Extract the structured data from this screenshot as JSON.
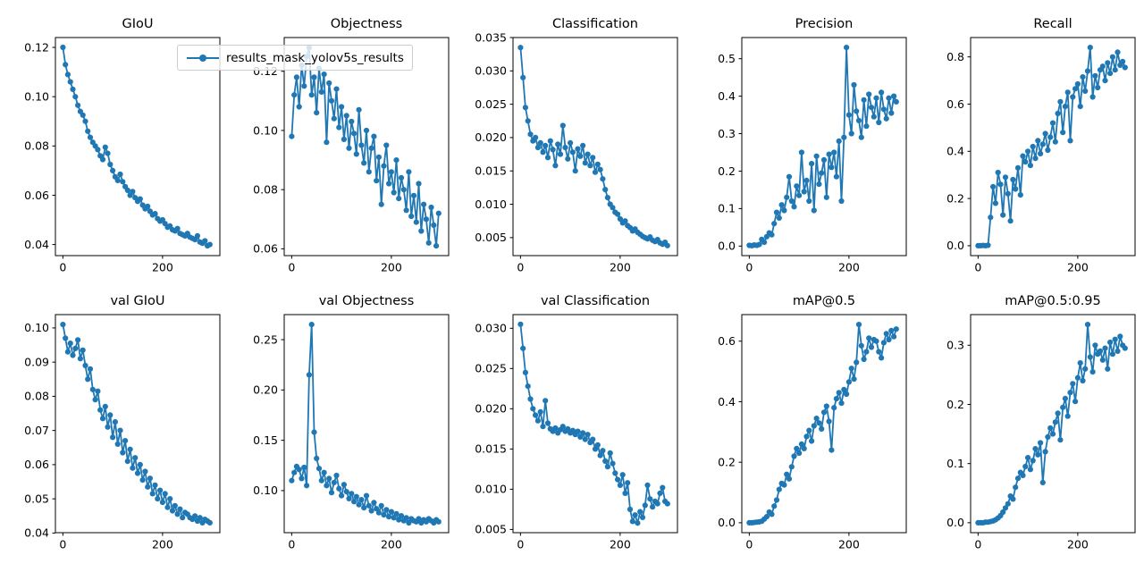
{
  "figure": {
    "background": "#ffffff",
    "line_color": "#1f77b4",
    "legend": {
      "label": "results_mask_yolov5s_results"
    }
  },
  "chart_data": {
    "type": "line",
    "series_name": "results_mask_yolov5s_results",
    "legend_position": "top, spanning first and second subplot",
    "grid": false,
    "marker": "circle",
    "xlim": [
      -15,
      315
    ],
    "xticks": [
      0,
      200
    ],
    "xtick_labels": [
      "0",
      "200"
    ],
    "x": [
      0,
      5,
      10,
      15,
      20,
      25,
      30,
      35,
      40,
      45,
      50,
      55,
      60,
      65,
      70,
      75,
      80,
      85,
      90,
      95,
      100,
      105,
      110,
      115,
      120,
      125,
      130,
      135,
      140,
      145,
      150,
      155,
      160,
      165,
      170,
      175,
      180,
      185,
      190,
      195,
      200,
      205,
      210,
      215,
      220,
      225,
      230,
      235,
      240,
      245,
      250,
      255,
      260,
      265,
      270,
      275,
      280,
      285,
      290,
      295
    ],
    "subplots": [
      {
        "title": "GIoU",
        "ylim": [
          0.0355,
          0.124
        ],
        "yticks": [
          0.04,
          0.06,
          0.08,
          0.1,
          0.12
        ],
        "ytick_labels": [
          "0.04",
          "0.06",
          "0.08",
          "0.10",
          "0.12"
        ],
        "values": [
          0.12,
          0.113,
          0.109,
          0.106,
          0.103,
          0.1,
          0.0965,
          0.094,
          0.0925,
          0.09,
          0.086,
          0.0835,
          0.0815,
          0.08,
          0.0785,
          0.076,
          0.0745,
          0.0795,
          0.077,
          0.0725,
          0.07,
          0.0675,
          0.066,
          0.0685,
          0.0655,
          0.0635,
          0.062,
          0.06,
          0.0615,
          0.059,
          0.0575,
          0.0585,
          0.056,
          0.0545,
          0.0555,
          0.0535,
          0.052,
          0.0525,
          0.0505,
          0.0495,
          0.05,
          0.0485,
          0.047,
          0.0475,
          0.046,
          0.0455,
          0.0465,
          0.0445,
          0.044,
          0.0435,
          0.0445,
          0.043,
          0.0425,
          0.042,
          0.0435,
          0.041,
          0.0405,
          0.0415,
          0.0395,
          0.04
        ]
      },
      {
        "title": "Objectness",
        "ylim": [
          0.0577,
          0.1314
        ],
        "yticks": [
          0.06,
          0.08,
          0.1,
          0.12
        ],
        "ytick_labels": [
          "0.06",
          "0.08",
          "0.10",
          "0.12"
        ],
        "values": [
          0.098,
          0.112,
          0.118,
          0.108,
          0.122,
          0.115,
          0.125,
          0.128,
          0.112,
          0.118,
          0.106,
          0.121,
          0.113,
          0.119,
          0.096,
          0.116,
          0.11,
          0.104,
          0.114,
          0.101,
          0.108,
          0.097,
          0.105,
          0.094,
          0.103,
          0.099,
          0.092,
          0.107,
          0.095,
          0.089,
          0.1,
          0.086,
          0.094,
          0.098,
          0.083,
          0.091,
          0.075,
          0.088,
          0.095,
          0.082,
          0.086,
          0.079,
          0.09,
          0.077,
          0.084,
          0.08,
          0.073,
          0.086,
          0.071,
          0.078,
          0.069,
          0.082,
          0.066,
          0.075,
          0.07,
          0.062,
          0.074,
          0.068,
          0.061,
          0.072
        ]
      },
      {
        "title": "Classification",
        "ylim": [
          0.0023,
          0.035
        ],
        "yticks": [
          0.005,
          0.01,
          0.015,
          0.02,
          0.025,
          0.03,
          0.035
        ],
        "ytick_labels": [
          "0.005",
          "0.010",
          "0.015",
          "0.020",
          "0.025",
          "0.030",
          "0.035"
        ],
        "values": [
          0.0335,
          0.029,
          0.0245,
          0.0225,
          0.0205,
          0.0195,
          0.02,
          0.0185,
          0.0192,
          0.0178,
          0.0188,
          0.017,
          0.0195,
          0.0182,
          0.0158,
          0.019,
          0.0175,
          0.0218,
          0.0185,
          0.0168,
          0.0192,
          0.0178,
          0.015,
          0.0183,
          0.0172,
          0.0188,
          0.0162,
          0.0175,
          0.0158,
          0.017,
          0.0148,
          0.016,
          0.0152,
          0.0138,
          0.0122,
          0.011,
          0.01,
          0.0095,
          0.0088,
          0.0085,
          0.0078,
          0.0072,
          0.0075,
          0.0068,
          0.0065,
          0.006,
          0.0063,
          0.0058,
          0.0055,
          0.0052,
          0.005,
          0.0048,
          0.0051,
          0.0046,
          0.0044,
          0.0047,
          0.0042,
          0.004,
          0.0043,
          0.0038
        ]
      },
      {
        "title": "Precision",
        "ylim": [
          -0.0255,
          0.5565
        ],
        "yticks": [
          0.0,
          0.1,
          0.2,
          0.3,
          0.4,
          0.5
        ],
        "ytick_labels": [
          "0.0",
          "0.1",
          "0.2",
          "0.3",
          "0.4",
          "0.5"
        ],
        "values": [
          0.002,
          0.001,
          0.003,
          0.002,
          0.004,
          0.018,
          0.01,
          0.025,
          0.035,
          0.03,
          0.06,
          0.09,
          0.075,
          0.11,
          0.095,
          0.13,
          0.185,
          0.12,
          0.105,
          0.16,
          0.135,
          0.25,
          0.145,
          0.175,
          0.12,
          0.22,
          0.095,
          0.24,
          0.165,
          0.195,
          0.23,
          0.13,
          0.245,
          0.21,
          0.25,
          0.185,
          0.28,
          0.12,
          0.29,
          0.53,
          0.35,
          0.3,
          0.43,
          0.36,
          0.335,
          0.29,
          0.39,
          0.32,
          0.405,
          0.37,
          0.345,
          0.395,
          0.33,
          0.41,
          0.365,
          0.34,
          0.395,
          0.355,
          0.4,
          0.385
        ]
      },
      {
        "title": "Recall",
        "ylim": [
          -0.042,
          0.882
        ],
        "yticks": [
          0.0,
          0.2,
          0.4,
          0.6,
          0.8
        ],
        "ytick_labels": [
          "0.0",
          "0.2",
          "0.4",
          "0.6",
          "0.8"
        ],
        "values": [
          0.0,
          0.0,
          0.001,
          0.0,
          0.002,
          0.12,
          0.25,
          0.18,
          0.31,
          0.26,
          0.13,
          0.29,
          0.22,
          0.105,
          0.28,
          0.24,
          0.33,
          0.215,
          0.38,
          0.355,
          0.4,
          0.34,
          0.42,
          0.37,
          0.445,
          0.39,
          0.43,
          0.475,
          0.405,
          0.46,
          0.52,
          0.44,
          0.56,
          0.61,
          0.48,
          0.59,
          0.65,
          0.445,
          0.63,
          0.665,
          0.685,
          0.59,
          0.715,
          0.655,
          0.74,
          0.84,
          0.63,
          0.72,
          0.67,
          0.745,
          0.76,
          0.7,
          0.775,
          0.73,
          0.8,
          0.745,
          0.82,
          0.765,
          0.78,
          0.755
        ]
      },
      {
        "title": "val GIoU",
        "ylim": [
          0.0401,
          0.1039
        ],
        "yticks": [
          0.04,
          0.05,
          0.06,
          0.07,
          0.08,
          0.09,
          0.1
        ],
        "ytick_labels": [
          "0.04",
          "0.05",
          "0.06",
          "0.07",
          "0.08",
          "0.09",
          "0.10"
        ],
        "values": [
          0.101,
          0.097,
          0.093,
          0.0955,
          0.092,
          0.094,
          0.0965,
          0.091,
          0.0935,
          0.089,
          0.085,
          0.088,
          0.082,
          0.079,
          0.0815,
          0.076,
          0.0735,
          0.077,
          0.071,
          0.0745,
          0.068,
          0.0725,
          0.066,
          0.07,
          0.0635,
          0.067,
          0.061,
          0.0645,
          0.059,
          0.062,
          0.0575,
          0.06,
          0.0555,
          0.058,
          0.0535,
          0.056,
          0.0515,
          0.054,
          0.05,
          0.0525,
          0.049,
          0.0515,
          0.0475,
          0.05,
          0.0465,
          0.048,
          0.0455,
          0.047,
          0.0445,
          0.046,
          0.0455,
          0.0445,
          0.044,
          0.045,
          0.0435,
          0.0445,
          0.043,
          0.044,
          0.0435,
          0.043
        ]
      },
      {
        "title": "val Objectness",
        "ylim": [
          0.0582,
          0.2749
        ],
        "yticks": [
          0.1,
          0.15,
          0.2,
          0.25
        ],
        "ytick_labels": [
          "0.10",
          "0.15",
          "0.20",
          "0.25"
        ],
        "values": [
          0.11,
          0.118,
          0.124,
          0.121,
          0.112,
          0.123,
          0.105,
          0.215,
          0.265,
          0.158,
          0.132,
          0.122,
          0.11,
          0.118,
          0.105,
          0.112,
          0.098,
          0.108,
          0.115,
          0.102,
          0.095,
          0.106,
          0.099,
          0.092,
          0.097,
          0.089,
          0.094,
          0.086,
          0.091,
          0.083,
          0.095,
          0.085,
          0.08,
          0.088,
          0.082,
          0.078,
          0.085,
          0.076,
          0.081,
          0.074,
          0.079,
          0.073,
          0.077,
          0.071,
          0.075,
          0.07,
          0.073,
          0.068,
          0.072,
          0.07,
          0.069,
          0.072,
          0.068,
          0.071,
          0.069,
          0.072,
          0.07,
          0.068,
          0.071,
          0.069
        ]
      },
      {
        "title": "val Classification",
        "ylim": [
          0.0046,
          0.0317
        ],
        "yticks": [
          0.005,
          0.01,
          0.015,
          0.02,
          0.025,
          0.03
        ],
        "ytick_labels": [
          "0.005",
          "0.010",
          "0.015",
          "0.020",
          "0.025",
          "0.030"
        ],
        "values": [
          0.0305,
          0.0275,
          0.0245,
          0.0228,
          0.0212,
          0.02,
          0.0192,
          0.0185,
          0.0196,
          0.0178,
          0.021,
          0.0182,
          0.0175,
          0.0172,
          0.0176,
          0.017,
          0.0174,
          0.0178,
          0.0172,
          0.0175,
          0.017,
          0.0173,
          0.0168,
          0.0172,
          0.0165,
          0.017,
          0.0162,
          0.0168,
          0.0158,
          0.0162,
          0.015,
          0.0155,
          0.0142,
          0.0148,
          0.0135,
          0.0128,
          0.0145,
          0.0132,
          0.012,
          0.0112,
          0.0105,
          0.0118,
          0.0095,
          0.0108,
          0.0075,
          0.006,
          0.0068,
          0.0058,
          0.0072,
          0.0065,
          0.008,
          0.0105,
          0.0088,
          0.0078,
          0.0085,
          0.0082,
          0.0095,
          0.0102,
          0.0085,
          0.0082
        ]
      },
      {
        "title": "mAP@0.5",
        "ylim": [
          -0.0328,
          0.6878
        ],
        "yticks": [
          0.0,
          0.2,
          0.4,
          0.6
        ],
        "ytick_labels": [
          "0.0",
          "0.2",
          "0.4",
          "0.6"
        ],
        "values": [
          0.0,
          0.0,
          0.001,
          0.002,
          0.003,
          0.005,
          0.012,
          0.02,
          0.035,
          0.028,
          0.055,
          0.075,
          0.11,
          0.13,
          0.125,
          0.16,
          0.145,
          0.185,
          0.22,
          0.245,
          0.23,
          0.26,
          0.245,
          0.285,
          0.305,
          0.27,
          0.32,
          0.345,
          0.33,
          0.31,
          0.365,
          0.385,
          0.335,
          0.24,
          0.38,
          0.41,
          0.43,
          0.395,
          0.44,
          0.425,
          0.465,
          0.51,
          0.475,
          0.53,
          0.655,
          0.585,
          0.54,
          0.565,
          0.61,
          0.58,
          0.605,
          0.6,
          0.565,
          0.545,
          0.595,
          0.625,
          0.605,
          0.635,
          0.615,
          0.64
        ]
      },
      {
        "title": "mAP@0.5:0.95",
        "ylim": [
          -0.0168,
          0.3518
        ],
        "yticks": [
          0.0,
          0.1,
          0.2,
          0.3
        ],
        "ytick_labels": [
          "0.0",
          "0.1",
          "0.2",
          "0.3"
        ],
        "values": [
          0.0,
          0.0,
          0.0,
          0.001,
          0.001,
          0.002,
          0.003,
          0.005,
          0.008,
          0.012,
          0.018,
          0.025,
          0.032,
          0.045,
          0.04,
          0.06,
          0.075,
          0.085,
          0.08,
          0.095,
          0.11,
          0.09,
          0.105,
          0.125,
          0.115,
          0.135,
          0.068,
          0.12,
          0.145,
          0.16,
          0.15,
          0.17,
          0.185,
          0.14,
          0.195,
          0.21,
          0.18,
          0.22,
          0.235,
          0.205,
          0.245,
          0.27,
          0.24,
          0.26,
          0.335,
          0.28,
          0.255,
          0.3,
          0.285,
          0.29,
          0.275,
          0.295,
          0.26,
          0.305,
          0.285,
          0.31,
          0.29,
          0.315,
          0.3,
          0.295
        ]
      }
    ]
  }
}
